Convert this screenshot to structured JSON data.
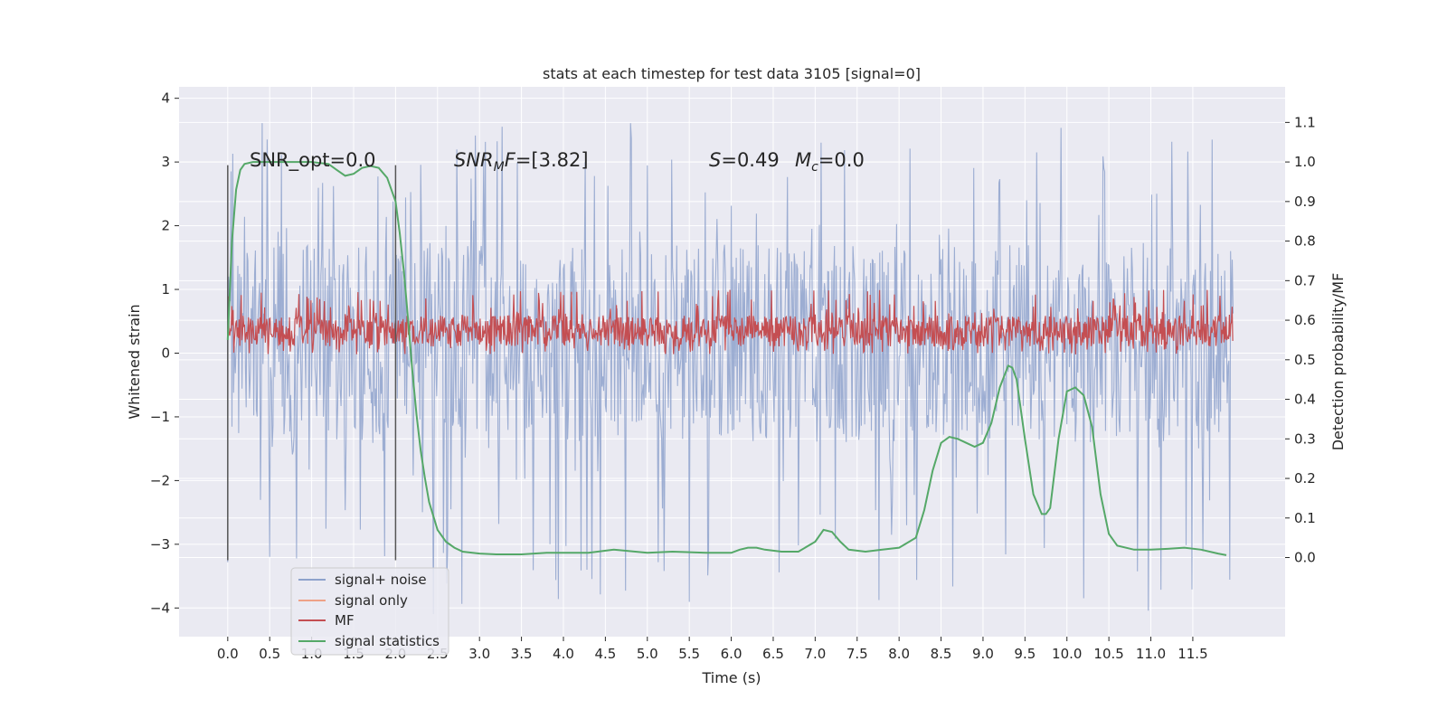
{
  "chart_data": {
    "type": "line",
    "title": "stats at each timestep for test data 3105 [signal=0]",
    "xlabel": "Time (s)",
    "ylabel": "Whitened strain",
    "ylabel_right": "Detection probability/MF",
    "xlim": [
      -0.58,
      12.6
    ],
    "ylim": [
      -4.45,
      4.18
    ],
    "ylim_right": [
      -0.2,
      1.19
    ],
    "x_ticks": [
      "0.0",
      "0.5",
      "1.0",
      "1.5",
      "2.0",
      "2.5",
      "3.0",
      "3.5",
      "4.0",
      "4.5",
      "5.0",
      "5.5",
      "6.0",
      "6.5",
      "7.0",
      "7.5",
      "8.0",
      "8.5",
      "9.0",
      "9.5",
      "10.0",
      "10.5",
      "11.0",
      "11.5"
    ],
    "y_ticks_left": [
      "−4",
      "−3",
      "−2",
      "−1",
      "0",
      "1",
      "2",
      "3",
      "4"
    ],
    "y_ticks_right": [
      "0.0",
      "0.1",
      "0.2",
      "0.3",
      "0.4",
      "0.5",
      "0.6",
      "0.7",
      "0.8",
      "0.9",
      "1.0",
      "1.1"
    ],
    "grid": true,
    "legend_position": "lower-left",
    "annotations": {
      "snr_opt": "SNR_opt=0.0",
      "snr_mf_var": "SNR",
      "snr_mf_sub": "M",
      "snr_mf_var2": "F",
      "snr_mf_val": "=[3.82]",
      "s_var": "S",
      "s_val": "=0.49",
      "mc_var": "M",
      "mc_sub": "c",
      "mc_val": "=0.0"
    },
    "vertical_markers": [
      0.0,
      2.0
    ],
    "series": [
      {
        "name": "signal+ noise",
        "color": "#8ea2cc",
        "axis": "left",
        "kind": "noise",
        "x_range": [
          0.0,
          11.98
        ],
        "typical_range": [
          -1.4,
          1.7
        ],
        "min": -4.1,
        "max": 3.8
      },
      {
        "name": "signal only",
        "color": "#eea287",
        "axis": "left",
        "kind": "empty"
      },
      {
        "name": "MF",
        "color": "#c44e52",
        "axis": "left",
        "kind": "noise",
        "x_range": [
          0.0,
          11.98
        ],
        "typical_range": [
          0.0,
          0.7
        ],
        "min": -0.02,
        "max": 1.0
      },
      {
        "name": "signal statistics",
        "color": "#55a868",
        "axis": "right",
        "kind": "line",
        "x": [
          0.0,
          0.05,
          0.1,
          0.15,
          0.2,
          0.3,
          0.5,
          0.8,
          1.0,
          1.2,
          1.3,
          1.4,
          1.5,
          1.6,
          1.7,
          1.8,
          1.9,
          2.0,
          2.05,
          2.1,
          2.15,
          2.2,
          2.25,
          2.3,
          2.35,
          2.4,
          2.5,
          2.6,
          2.7,
          2.8,
          3.0,
          3.2,
          3.5,
          3.8,
          4.0,
          4.3,
          4.6,
          5.0,
          5.3,
          5.7,
          6.0,
          6.1,
          6.2,
          6.3,
          6.4,
          6.6,
          6.8,
          7.0,
          7.1,
          7.2,
          7.3,
          7.4,
          7.6,
          7.8,
          8.0,
          8.2,
          8.3,
          8.4,
          8.5,
          8.6,
          8.7,
          8.8,
          8.9,
          9.0,
          9.1,
          9.2,
          9.3,
          9.35,
          9.4,
          9.5,
          9.6,
          9.7,
          9.75,
          9.8,
          9.9,
          10.0,
          10.1,
          10.2,
          10.3,
          10.4,
          10.5,
          10.6,
          10.8,
          11.0,
          11.2,
          11.4,
          11.6,
          11.8,
          11.9
        ],
        "y": [
          0.55,
          0.8,
          0.93,
          0.98,
          0.995,
          1.0,
          1.0,
          1.0,
          1.0,
          0.995,
          0.98,
          0.965,
          0.97,
          0.985,
          0.99,
          0.985,
          0.96,
          0.9,
          0.82,
          0.72,
          0.6,
          0.47,
          0.36,
          0.27,
          0.2,
          0.14,
          0.07,
          0.04,
          0.025,
          0.015,
          0.01,
          0.008,
          0.008,
          0.012,
          0.012,
          0.012,
          0.02,
          0.012,
          0.015,
          0.012,
          0.012,
          0.02,
          0.025,
          0.025,
          0.02,
          0.015,
          0.015,
          0.04,
          0.07,
          0.065,
          0.04,
          0.02,
          0.015,
          0.02,
          0.025,
          0.05,
          0.12,
          0.22,
          0.29,
          0.305,
          0.3,
          0.29,
          0.28,
          0.29,
          0.34,
          0.43,
          0.485,
          0.48,
          0.45,
          0.3,
          0.16,
          0.11,
          0.11,
          0.125,
          0.3,
          0.42,
          0.43,
          0.41,
          0.33,
          0.16,
          0.06,
          0.03,
          0.02,
          0.02,
          0.022,
          0.025,
          0.02,
          0.01,
          0.006
        ]
      }
    ]
  }
}
